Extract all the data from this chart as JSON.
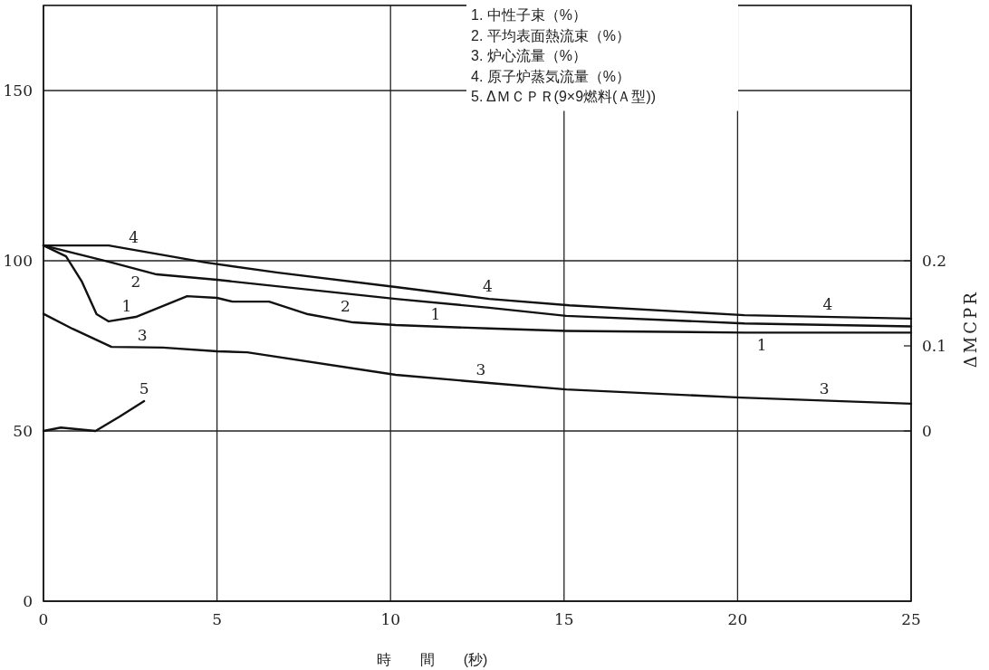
{
  "chart_data": {
    "type": "line",
    "xlabel": "時　　間　　(秒)",
    "y2label": "ΔMCPR",
    "xlim": [
      0,
      25
    ],
    "xticks": [
      0,
      5,
      10,
      15,
      20,
      25
    ],
    "ylim": [
      0,
      175
    ],
    "yticks": [
      0,
      50,
      100,
      150
    ],
    "y2lim": [
      -0.2,
      0.5
    ],
    "y2ticks": [
      0,
      0.1,
      0.2
    ],
    "grid": true,
    "line_style": "solid",
    "marker": "none",
    "series": [
      {
        "color": "#111111",
        "x": [
          0,
          0.65,
          1.1,
          1.53,
          1.88,
          2.66,
          4.14,
          5.0,
          5.45,
          6.5,
          7.62,
          8.92,
          10.15,
          12.84,
          15.06,
          20.2,
          25
        ],
        "values": [
          104.5,
          101.3,
          94,
          84.3,
          82.2,
          83.5,
          89.6,
          89.1,
          88,
          88,
          84.3,
          81.9,
          81.1,
          80.1,
          79.4,
          78.9,
          78.9
        ]
      },
      {
        "color": "#111111",
        "x": [
          0,
          1.96,
          3.26,
          5.0,
          10.15,
          12.84,
          15.06,
          20.2,
          25
        ],
        "values": [
          104.5,
          99.5,
          96,
          94.4,
          88.8,
          86.2,
          83.8,
          81.6,
          80.7
        ]
      },
      {
        "color": "#111111",
        "x": [
          0,
          0.84,
          1.96,
          3.44,
          5.0,
          5.87,
          10.15,
          12.84,
          15.06,
          20.1,
          25
        ],
        "values": [
          84.4,
          80,
          74.7,
          74.5,
          73.4,
          73.1,
          66.5,
          64.1,
          62.2,
          59.8,
          58
        ]
      },
      {
        "color": "#111111",
        "x": [
          0,
          1.88,
          4.67,
          6.76,
          10.15,
          12.84,
          15.16,
          20.2,
          25
        ],
        "values": [
          104.5,
          104.5,
          99.5,
          96.5,
          92.3,
          88.8,
          86.9,
          84,
          83
        ]
      },
      {
        "color": "#111111",
        "axis": "y2",
        "x": [
          0,
          0.5,
          1.5,
          2.2,
          2.9
        ],
        "values": [
          0,
          0.004,
          0,
          0.017,
          0.035
        ]
      }
    ],
    "annotations": [
      "1.  中性子束（%）",
      "2.  平均表面熱流束（%）",
      "3.  炉心流量（%）",
      "4.  原子炉蒸気流量（%）",
      "5.  ΔＭＣＰＲ(9×9燃料(Ａ型))",
      {
        "text": "4",
        "x": 2.6,
        "y": 103.2
      },
      {
        "text": "2",
        "x": 2.66,
        "y": 97.6
      },
      {
        "text": "1",
        "x": 2.4,
        "y": 83.07
      },
      {
        "text": "3",
        "x": 2.85,
        "y": 74.58
      },
      {
        "text": "5",
        "x": 2.9,
        "y": 58.75
      },
      {
        "text": "2",
        "x": 8.7,
        "y": 90.38
      },
      {
        "text": "1",
        "x": 11.3,
        "y": 80.67
      },
      {
        "text": "4",
        "x": 12.8,
        "y": 88.85
      },
      {
        "text": "3",
        "x": 12.6,
        "y": 64.3
      },
      {
        "text": "4",
        "x": 22.6,
        "y": 83.5
      },
      {
        "text": "1",
        "x": 20.7,
        "y": 78.9
      },
      {
        "text": "3",
        "x": 22.5,
        "y": 58.9
      }
    ]
  }
}
